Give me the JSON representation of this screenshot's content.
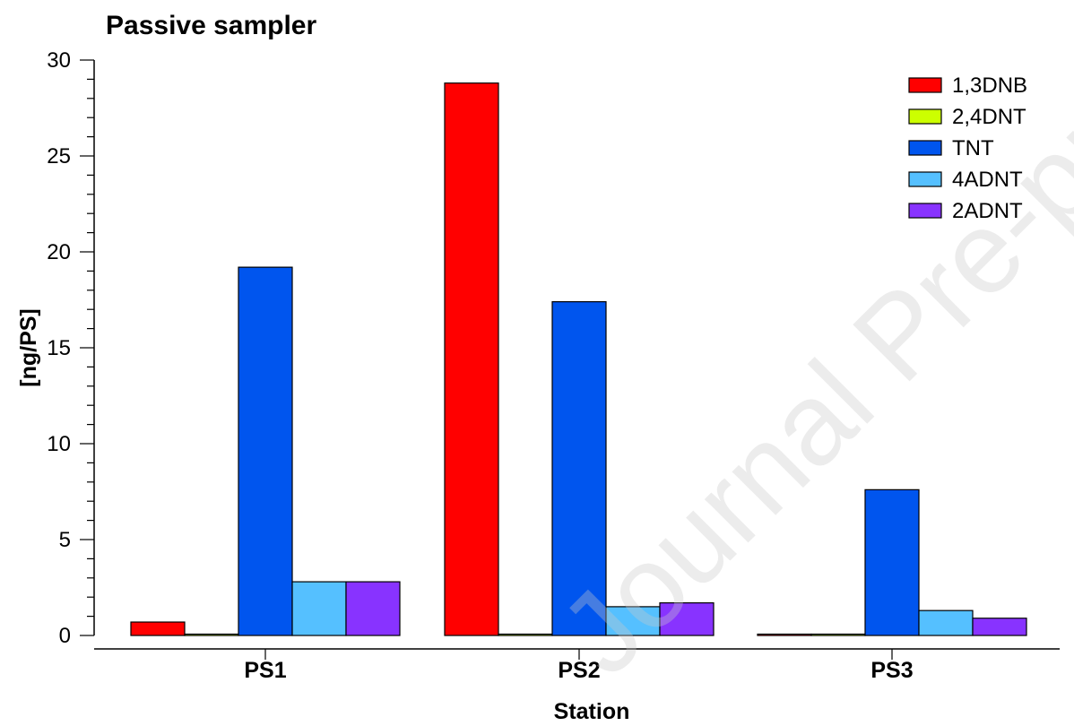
{
  "chart_data": {
    "type": "bar",
    "title": "Passive sampler",
    "xlabel": "Station",
    "ylabel": "[ng/PS]",
    "ylim": [
      0,
      30
    ],
    "yticks": [
      0,
      5,
      10,
      15,
      20,
      25,
      30
    ],
    "categories": [
      "PS1",
      "PS2",
      "PS3"
    ],
    "series": [
      {
        "name": "1,3DNB",
        "color": "#ff0000",
        "values": [
          0.7,
          28.8,
          0.05
        ]
      },
      {
        "name": "2,4DNT",
        "color": "#ccff00",
        "values": [
          0.05,
          0.05,
          0.05
        ]
      },
      {
        "name": "TNT",
        "color": "#0055ee",
        "values": [
          19.2,
          17.4,
          7.6
        ]
      },
      {
        "name": "4ADNT",
        "color": "#55c0ff",
        "values": [
          2.8,
          1.5,
          1.3
        ]
      },
      {
        "name": "2ADNT",
        "color": "#8833ff",
        "values": [
          2.8,
          1.7,
          0.9
        ]
      }
    ],
    "legend_position": "top-right",
    "grid": false
  },
  "watermark": "Journal Pre-proof"
}
